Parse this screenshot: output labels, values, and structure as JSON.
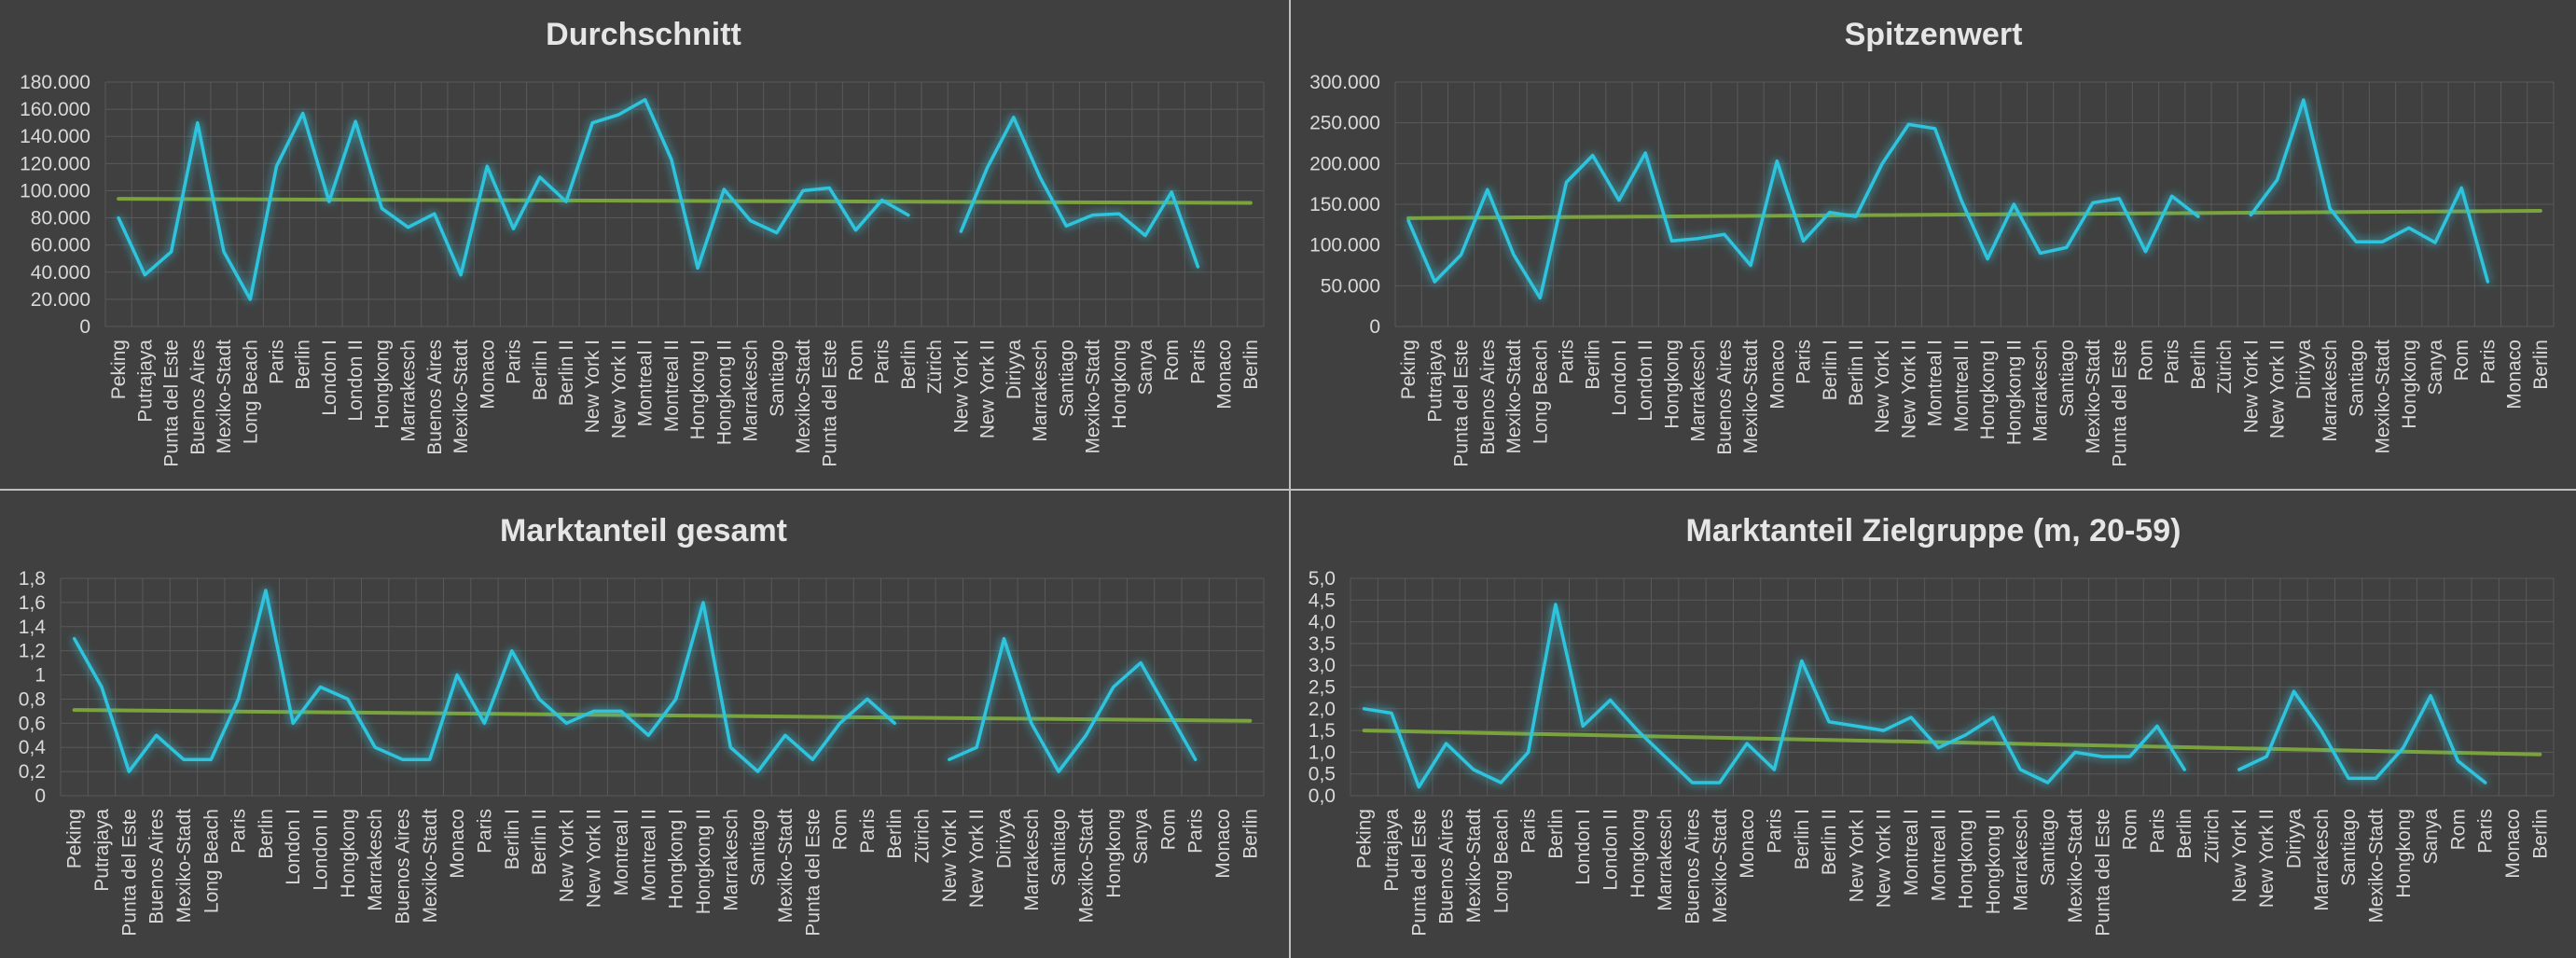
{
  "colors": {
    "background": "#404040",
    "line": "#2ec4dd",
    "glow": "#1fa3d8",
    "trend": "#7aa33c",
    "grid": "#595959",
    "text": "#d9d9d9",
    "title": "#e6e6e6",
    "divider": "#bfbfbf"
  },
  "chart_data": [
    {
      "type": "line",
      "title": "Durchschnitt",
      "categories": [
        "Peking",
        "Putrajaya",
        "Punta del Este",
        "Buenos Aires",
        "Mexiko-Stadt",
        "Long Beach",
        "Paris",
        "Berlin",
        "London I",
        "London II",
        "Hongkong",
        "Marrakesch",
        "Buenos Aires",
        "Mexiko-Stadt",
        "Monaco",
        "Paris",
        "Berlin I",
        "Berlin II",
        "New York I",
        "New York II",
        "Montreal I",
        "Montreal II",
        "Hongkong I",
        "Hongkong II",
        "Marrakesch",
        "Santiago",
        "Mexiko-Stadt",
        "Punta del Este",
        "Rom",
        "Paris",
        "Berlin",
        "Zürich",
        "New York I",
        "New York II",
        "Diriyya",
        "Marrakesch",
        "Santiago",
        "Mexiko-Stadt",
        "Hongkong",
        "Sanya",
        "Rom",
        "Paris",
        "Monaco",
        "Berlin"
      ],
      "yticks": [
        "0",
        "20.000",
        "40.000",
        "60.000",
        "80.000",
        "100.000",
        "120.000",
        "140.000",
        "160.000",
        "180.000"
      ],
      "ylim": [
        0,
        180000
      ],
      "series": [
        {
          "values": [
            80000,
            38000,
            55000,
            150000,
            55000,
            20000,
            118000,
            157000,
            92000,
            151000,
            87000,
            73000,
            83000,
            38000,
            118000,
            72000,
            110000,
            92000,
            150000,
            156000,
            167000,
            123000,
            43000,
            101000,
            78000,
            69000,
            100000,
            102000,
            71000,
            93000,
            82000,
            null,
            70000,
            117000,
            154000,
            110000,
            74000,
            82000,
            83000,
            67000,
            99000,
            44000,
            null,
            null
          ]
        }
      ],
      "trend": [
        94000,
        91000
      ],
      "grid": true,
      "legend": "none"
    },
    {
      "type": "line",
      "title": "Spitzenwert",
      "categories": [
        "Peking",
        "Putrajaya",
        "Punta del Este",
        "Buenos Aires",
        "Mexiko-Stadt",
        "Long Beach",
        "Paris",
        "Berlin",
        "London I",
        "London II",
        "Hongkong",
        "Marrakesch",
        "Buenos Aires",
        "Mexiko-Stadt",
        "Monaco",
        "Paris",
        "Berlin I",
        "Berlin II",
        "New York I",
        "New York II",
        "Montreal I",
        "Montreal II",
        "Hongkong I",
        "Hongkong II",
        "Marrakesch",
        "Santiago",
        "Mexiko-Stadt",
        "Punta del Este",
        "Rom",
        "Paris",
        "Berlin",
        "Zürich",
        "New York I",
        "New York II",
        "Diriyya",
        "Marrakesch",
        "Santiago",
        "Mexiko-Stadt",
        "Hongkong",
        "Sanya",
        "Rom",
        "Paris",
        "Monaco",
        "Berlin"
      ],
      "yticks": [
        "0",
        "50.000",
        "100.000",
        "150.000",
        "200.000",
        "250.000",
        "300.000"
      ],
      "ylim": [
        0,
        300000
      ],
      "series": [
        {
          "values": [
            130000,
            55000,
            88000,
            168000,
            88000,
            35000,
            177000,
            210000,
            155000,
            213000,
            105000,
            108000,
            113000,
            75000,
            203000,
            105000,
            140000,
            135000,
            200000,
            248000,
            243000,
            155000,
            83000,
            150000,
            90000,
            97000,
            152000,
            157000,
            92000,
            160000,
            135000,
            null,
            137000,
            180000,
            278000,
            145000,
            104000,
            104000,
            121000,
            103000,
            170000,
            55000,
            null,
            null
          ]
        }
      ],
      "trend": [
        133000,
        142000
      ],
      "grid": true,
      "legend": "none"
    },
    {
      "type": "line",
      "title": "Marktanteil gesamt",
      "categories": [
        "Peking",
        "Putrajaya",
        "Punta del Este",
        "Buenos Aires",
        "Mexiko-Stadt",
        "Long Beach",
        "Paris",
        "Berlin",
        "London I",
        "London II",
        "Hongkong",
        "Marrakesch",
        "Buenos Aires",
        "Mexiko-Stadt",
        "Monaco",
        "Paris",
        "Berlin I",
        "Berlin II",
        "New York I",
        "New York II",
        "Montreal I",
        "Montreal II",
        "Hongkong I",
        "Hongkong II",
        "Marrakesch",
        "Santiago",
        "Mexiko-Stadt",
        "Punta del Este",
        "Rom",
        "Paris",
        "Berlin",
        "Zürich",
        "New York I",
        "New York II",
        "Diriyya",
        "Marrakesch",
        "Santiago",
        "Mexiko-Stadt",
        "Hongkong",
        "Sanya",
        "Rom",
        "Paris",
        "Monaco",
        "Berlin"
      ],
      "yticks": [
        "0",
        "0,2",
        "0,4",
        "0,6",
        "0,8",
        "1",
        "1,2",
        "1,4",
        "1,6",
        "1,8"
      ],
      "ylim": [
        0,
        1.8
      ],
      "series": [
        {
          "values": [
            1.3,
            0.9,
            0.2,
            0.5,
            0.3,
            0.3,
            0.8,
            1.7,
            0.6,
            0.9,
            0.8,
            0.4,
            0.3,
            0.3,
            1.0,
            0.6,
            1.2,
            0.8,
            0.6,
            0.7,
            0.7,
            0.5,
            0.8,
            1.6,
            0.4,
            0.2,
            0.5,
            0.3,
            0.6,
            0.8,
            0.6,
            null,
            0.3,
            0.4,
            1.3,
            0.6,
            0.2,
            0.5,
            0.9,
            1.1,
            0.7,
            0.3,
            null,
            null
          ]
        }
      ],
      "trend": [
        0.71,
        0.62
      ],
      "grid": true,
      "legend": "none"
    },
    {
      "type": "line",
      "title": "Marktanteil Zielgruppe (m, 20-59)",
      "categories": [
        "Peking",
        "Putrajaya",
        "Punta del Este",
        "Buenos Aires",
        "Mexiko-Stadt",
        "Long Beach",
        "Paris",
        "Berlin",
        "London I",
        "London II",
        "Hongkong",
        "Marrakesch",
        "Buenos Aires",
        "Mexiko-Stadt",
        "Monaco",
        "Paris",
        "Berlin I",
        "Berlin II",
        "New York I",
        "New York II",
        "Montreal I",
        "Montreal II",
        "Hongkong I",
        "Hongkong II",
        "Marrakesch",
        "Santiago",
        "Mexiko-Stadt",
        "Punta del Este",
        "Rom",
        "Paris",
        "Berlin",
        "Zürich",
        "New York I",
        "New York II",
        "Diriyya",
        "Marrakesch",
        "Santiago",
        "Mexiko-Stadt",
        "Hongkong",
        "Sanya",
        "Rom",
        "Paris",
        "Monaco",
        "Berlin"
      ],
      "yticks": [
        "0,0",
        "0,5",
        "1,0",
        "1,5",
        "2,0",
        "2,5",
        "3,0",
        "3,5",
        "4,0",
        "4,5",
        "5,0"
      ],
      "ylim": [
        0,
        5.0
      ],
      "series": [
        {
          "values": [
            2.0,
            1.9,
            0.2,
            1.2,
            0.6,
            0.3,
            1.0,
            4.4,
            1.6,
            2.2,
            1.5,
            0.9,
            0.3,
            0.3,
            1.2,
            0.6,
            3.1,
            1.7,
            1.6,
            1.5,
            1.8,
            1.1,
            1.4,
            1.8,
            0.6,
            0.3,
            1.0,
            0.9,
            0.9,
            1.6,
            0.6,
            null,
            0.6,
            0.9,
            2.4,
            1.5,
            0.4,
            0.4,
            1.1,
            2.3,
            0.8,
            0.3,
            null,
            null
          ]
        }
      ],
      "trend": [
        1.5,
        0.95
      ],
      "grid": true,
      "legend": "none"
    }
  ]
}
